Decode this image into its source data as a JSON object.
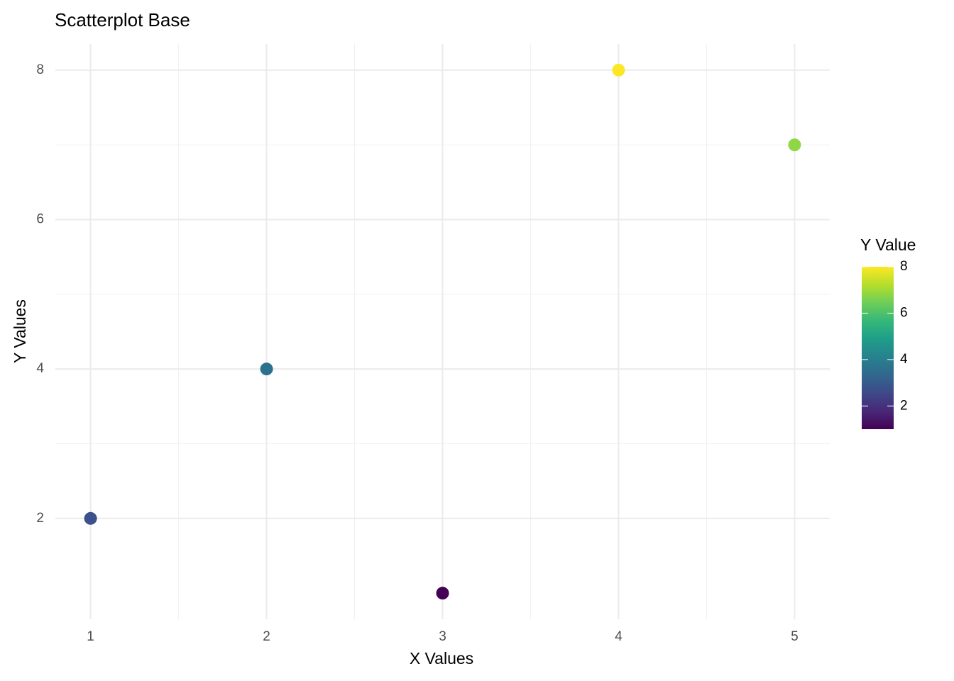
{
  "chart_data": {
    "type": "scatter",
    "title": "Scatterplot Base",
    "xlabel": "X Values",
    "ylabel": "Y Values",
    "x": [
      1,
      2,
      3,
      4,
      5
    ],
    "values": [
      2,
      4,
      1,
      8,
      7
    ],
    "colors": [
      "#3b528b",
      "#2c728e",
      "#440154",
      "#fde725",
      "#8fd744"
    ],
    "xlim": [
      0.8,
      5.2
    ],
    "ylim": [
      0.65,
      8.35
    ],
    "xticks": [
      1,
      2,
      3,
      4,
      5
    ],
    "yticks": [
      2,
      4,
      6,
      8
    ],
    "grid": true,
    "colorbar": {
      "title": "Y Value",
      "lim": [
        1,
        8
      ],
      "ticks": [
        2,
        4,
        6,
        8
      ],
      "colors": [
        "#440154",
        "#482878",
        "#3e4989",
        "#31688e",
        "#26828e",
        "#1f9e89",
        "#35b779",
        "#6ece58",
        "#b5de2b",
        "#fde725"
      ]
    }
  }
}
